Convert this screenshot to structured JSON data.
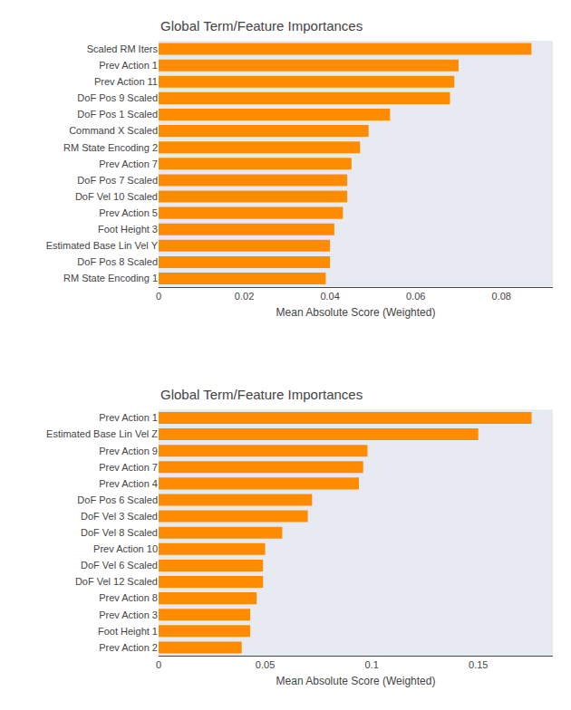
{
  "chart_data": [
    {
      "type": "bar",
      "orientation": "horizontal",
      "title": "Global Term/Feature Importances",
      "categories": [
        "Scaled RM Iters",
        "Prev Action 1",
        "Prev Action 11",
        "DoF Pos 9 Scaled",
        "DoF Pos 1 Scaled",
        "Command X Scaled",
        "RM State Encoding 2",
        "Prev Action 7",
        "DoF Pos 7 Scaled",
        "DoF Vel 10 Scaled",
        "Prev Action 5",
        "Foot Height 3",
        "Estimated Base Lin Vel Y",
        "DoF Pos 8 Scaled",
        "RM State Encoding 1"
      ],
      "values": [
        0.087,
        0.07,
        0.069,
        0.068,
        0.054,
        0.049,
        0.047,
        0.045,
        0.044,
        0.044,
        0.043,
        0.041,
        0.04,
        0.04,
        0.039
      ],
      "color": "#FF8C00",
      "xlabel": "Mean Absolute Score (Weighted)",
      "xlim": [
        0,
        0.092
      ],
      "xticks": [
        0,
        0.02,
        0.04,
        0.06,
        0.08
      ],
      "grid": false
    },
    {
      "type": "bar",
      "orientation": "horizontal",
      "title": "Global Term/Feature Importances",
      "categories": [
        "Prev Action 1",
        "Estimated Base Lin Vel Z",
        "Prev Action 9",
        "Prev Action 7",
        "Prev Action 4",
        "DoF Pos 6 Scaled",
        "DoF Vel 3 Scaled",
        "DoF Vel 8 Scaled",
        "Prev Action 10",
        "DoF Vel 6 Scaled",
        "DoF Vel 12 Scaled",
        "Prev Action 8",
        "Prev Action 3",
        "Foot Height 1",
        "Prev Action 2"
      ],
      "values": [
        0.175,
        0.15,
        0.098,
        0.096,
        0.094,
        0.072,
        0.07,
        0.058,
        0.05,
        0.049,
        0.049,
        0.046,
        0.043,
        0.043,
        0.039
      ],
      "color": "#FF8C00",
      "xlabel": "Mean Absolute Score (Weighted)",
      "xlim": [
        0,
        0.185
      ],
      "xticks": [
        0,
        0.05,
        0.1,
        0.15
      ],
      "grid": false
    }
  ]
}
